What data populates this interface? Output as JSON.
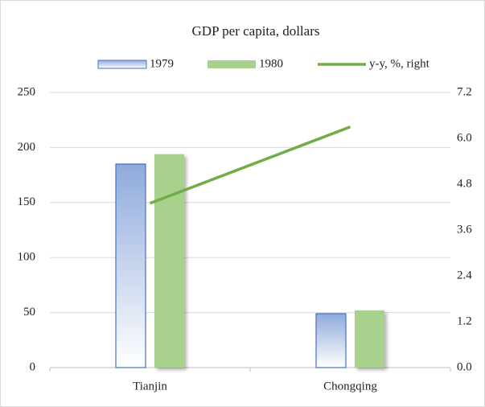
{
  "chart_data": {
    "type": "bar",
    "title": "GDP per capita,  dollars",
    "categories": [
      "Tianjin",
      "Chongqing"
    ],
    "series": [
      {
        "name": "1979",
        "color": "#4472c4",
        "values": [
          185,
          49
        ]
      },
      {
        "name": "1980",
        "color": "#a9d18e",
        "values": [
          194,
          52
        ]
      },
      {
        "name": "y-y, %, right",
        "color": "#70ad47",
        "type": "line",
        "axis": "y2",
        "values": [
          4.3,
          6.3
        ]
      }
    ],
    "ylim": [
      0,
      250
    ],
    "yticks": [
      0,
      50,
      100,
      150,
      200,
      250
    ],
    "y2lim": [
      0,
      7.2
    ],
    "y2ticks": [
      {
        "value": 0,
        "label": "0.0"
      },
      1.2,
      2.4,
      3.6,
      4.8,
      {
        "value": 6,
        "label": "6.0"
      },
      7.2
    ],
    "grid": true,
    "legend": "top"
  }
}
